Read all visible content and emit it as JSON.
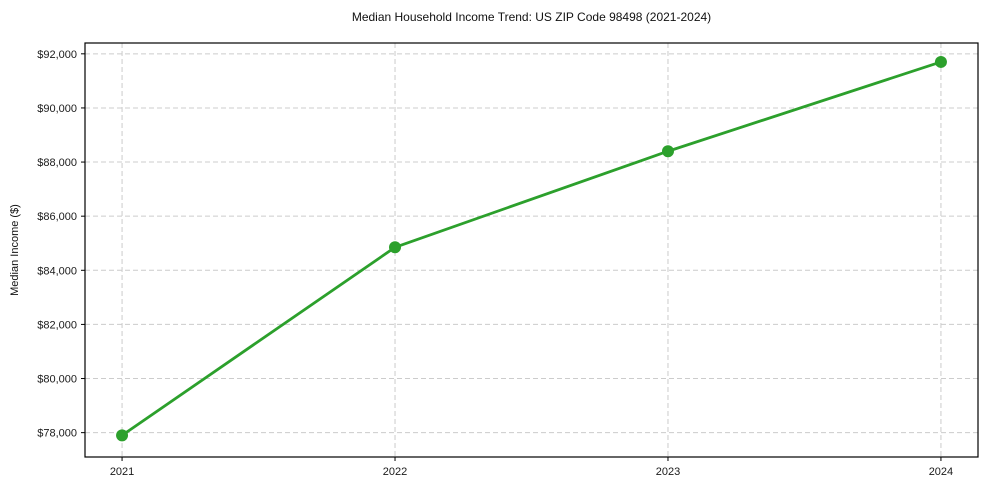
{
  "chart_data": {
    "type": "line",
    "title": "Median Household Income Trend: US ZIP Code 98498 (2021-2024)",
    "xlabel": "",
    "ylabel": "Median Income ($)",
    "x": [
      2021,
      2022,
      2023,
      2024
    ],
    "xticklabels": [
      "2021",
      "2022",
      "2023",
      "2024"
    ],
    "series": [
      {
        "name": "Median Household Income",
        "values": [
          77900,
          84850,
          88400,
          91700
        ]
      }
    ],
    "yticks": [
      78000,
      80000,
      82000,
      84000,
      86000,
      88000,
      90000,
      92000
    ],
    "yticklabels": [
      "$78,000",
      "$80,000",
      "$82,000",
      "$84,000",
      "$86,000",
      "$88,000",
      "$90,000",
      "$92,000"
    ],
    "ylim": [
      77100,
      92400
    ],
    "xlim_years": [
      2021,
      2024
    ],
    "grid": "dashed",
    "legend_position": "none",
    "colors": {
      "line": "#2ca02c",
      "marker": "#2ca02c",
      "grid": "#cccccc",
      "spine": "#000000",
      "text": "#1a1a1a",
      "background": "#ffffff"
    }
  }
}
